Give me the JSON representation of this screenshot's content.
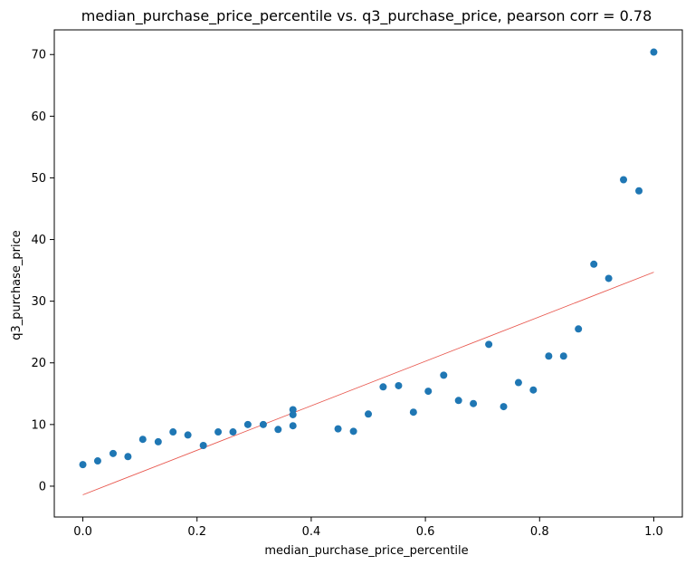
{
  "chart_data": {
    "type": "scatter",
    "title": "median_purchase_price_percentile vs. q3_purchase_price, pearson corr = 0.78",
    "xlabel": "median_purchase_price_percentile",
    "ylabel": "q3_purchase_price",
    "xlim": [
      -0.05,
      1.05
    ],
    "ylim": [
      -5,
      74
    ],
    "xticks": [
      0.0,
      0.2,
      0.4,
      0.6,
      0.8,
      1.0
    ],
    "xtick_labels": [
      "0.0",
      "0.2",
      "0.4",
      "0.6",
      "0.8",
      "1.0"
    ],
    "yticks": [
      0,
      10,
      20,
      30,
      40,
      50,
      60,
      70
    ],
    "ytick_labels": [
      "0",
      "10",
      "20",
      "30",
      "40",
      "50",
      "60",
      "70"
    ],
    "grid": false,
    "point_color": "#1f77b4",
    "trend_color": "#e8584f",
    "points": [
      {
        "x": 0.0,
        "y": 3.5
      },
      {
        "x": 0.026,
        "y": 4.1
      },
      {
        "x": 0.053,
        "y": 5.3
      },
      {
        "x": 0.079,
        "y": 4.8
      },
      {
        "x": 0.105,
        "y": 7.6
      },
      {
        "x": 0.132,
        "y": 7.2
      },
      {
        "x": 0.158,
        "y": 8.8
      },
      {
        "x": 0.184,
        "y": 8.3
      },
      {
        "x": 0.211,
        "y": 6.6
      },
      {
        "x": 0.237,
        "y": 8.8
      },
      {
        "x": 0.263,
        "y": 8.8
      },
      {
        "x": 0.289,
        "y": 10.0
      },
      {
        "x": 0.316,
        "y": 10.0
      },
      {
        "x": 0.342,
        "y": 9.2
      },
      {
        "x": 0.368,
        "y": 12.4
      },
      {
        "x": 0.368,
        "y": 11.6
      },
      {
        "x": 0.368,
        "y": 9.8
      },
      {
        "x": 0.447,
        "y": 9.3
      },
      {
        "x": 0.474,
        "y": 8.9
      },
      {
        "x": 0.5,
        "y": 11.7
      },
      {
        "x": 0.526,
        "y": 16.1
      },
      {
        "x": 0.553,
        "y": 16.3
      },
      {
        "x": 0.579,
        "y": 12.0
      },
      {
        "x": 0.605,
        "y": 15.4
      },
      {
        "x": 0.632,
        "y": 18.0
      },
      {
        "x": 0.658,
        "y": 13.9
      },
      {
        "x": 0.684,
        "y": 13.4
      },
      {
        "x": 0.711,
        "y": 23.0
      },
      {
        "x": 0.737,
        "y": 12.9
      },
      {
        "x": 0.763,
        "y": 16.8
      },
      {
        "x": 0.789,
        "y": 15.6
      },
      {
        "x": 0.816,
        "y": 21.1
      },
      {
        "x": 0.842,
        "y": 21.1
      },
      {
        "x": 0.868,
        "y": 25.5
      },
      {
        "x": 0.895,
        "y": 36.0
      },
      {
        "x": 0.921,
        "y": 33.7
      },
      {
        "x": 0.947,
        "y": 49.7
      },
      {
        "x": 0.974,
        "y": 47.9
      },
      {
        "x": 1.0,
        "y": 70.4
      }
    ],
    "trend_line": {
      "x": [
        0.0,
        1.0
      ],
      "y": [
        -1.4,
        34.7
      ]
    }
  }
}
